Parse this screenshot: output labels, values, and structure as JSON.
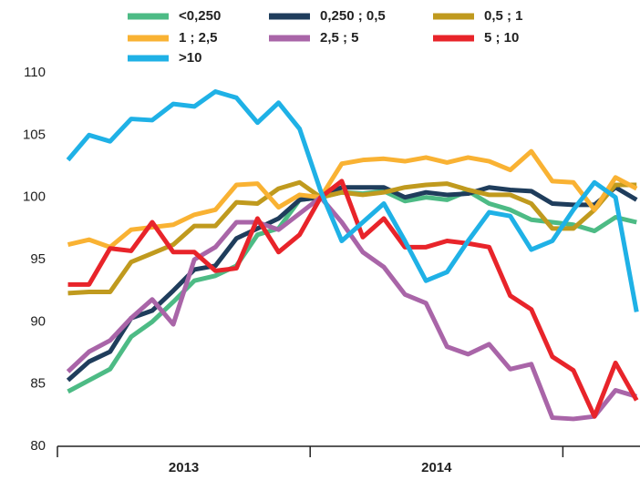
{
  "chart_data": {
    "type": "line",
    "categories": [
      null,
      null,
      null,
      null,
      null,
      null,
      null,
      null,
      null,
      null,
      null,
      null,
      null,
      null,
      null,
      null,
      null,
      null,
      null,
      null,
      null,
      null,
      null,
      null,
      null,
      null,
      null,
      null
    ],
    "x_group_labels": [
      "2013",
      "2014"
    ],
    "ylim": [
      80,
      110
    ],
    "yticks": [
      80,
      85,
      90,
      95,
      100,
      105,
      110
    ],
    "grid": false,
    "legend": "top",
    "series": [
      {
        "name": "<0,250",
        "color": "#4dbb85",
        "values": [
          84.4,
          85.3,
          86.2,
          88.8,
          90,
          91.6,
          93.3,
          93.7,
          94.5,
          97,
          97.5,
          99.8,
          100,
          100.4,
          100.3,
          100.5,
          99.7,
          100,
          99.8,
          100.5,
          99.5,
          99,
          98.2,
          98,
          97.8,
          97.3,
          98.4,
          98
        ]
      },
      {
        "name": "0,250 ; 0,5",
        "color": "#1f3d5c",
        "values": [
          85.3,
          86.8,
          87.6,
          90.3,
          90.9,
          92.5,
          94.2,
          94.5,
          96.7,
          97.5,
          98.3,
          99.8,
          100,
          100.8,
          100.8,
          100.8,
          100,
          100.4,
          100.2,
          100.3,
          100.8,
          100.6,
          100.5,
          99.5,
          99.4,
          99.4,
          100.8,
          99.8
        ]
      },
      {
        "name": "0,5 ; 1",
        "color": "#c09a1e",
        "values": [
          92.3,
          92.4,
          92.4,
          94.8,
          95.5,
          96.2,
          97.7,
          97.7,
          99.6,
          99.5,
          100.7,
          101.2,
          100,
          100.4,
          100.2,
          100.4,
          100.8,
          101,
          101.1,
          100.6,
          100.2,
          100.2,
          99.5,
          97.5,
          97.5,
          99,
          101,
          101
        ]
      },
      {
        "name": "1 ; 2,5",
        "color": "#f9b233",
        "values": [
          96.2,
          96.6,
          96,
          97.4,
          97.6,
          97.8,
          98.6,
          99,
          101,
          101.1,
          99.2,
          100.2,
          100,
          102.7,
          103,
          103.1,
          102.9,
          103.2,
          102.8,
          103.2,
          102.9,
          102.2,
          103.7,
          101.3,
          101.2,
          99,
          101.6,
          100.7
        ]
      },
      {
        "name": "2,5 ; 5",
        "color": "#a965a8",
        "values": [
          86,
          87.6,
          88.5,
          90.3,
          91.8,
          89.8,
          95,
          96,
          98,
          98,
          97.4,
          98.7,
          100,
          98,
          95.6,
          94.4,
          92.2,
          91.5,
          88,
          87.4,
          88.2,
          86.2,
          86.6,
          82.3,
          82.2,
          82.4,
          84.5,
          84
        ]
      },
      {
        "name": "5 ; 10",
        "color": "#e8242a",
        "values": [
          93,
          93,
          95.9,
          95.7,
          98,
          95.6,
          95.6,
          94.1,
          94.3,
          98.3,
          95.6,
          97,
          100,
          101.3,
          96.8,
          98.3,
          96,
          96,
          96.5,
          96.3,
          96,
          92.1,
          91,
          87.2,
          86.1,
          82.4,
          86.7,
          83.7
        ]
      },
      {
        "name": ">10",
        "color": "#1fb1e6",
        "values": [
          103,
          105,
          104.5,
          106.3,
          106.2,
          107.5,
          107.3,
          108.5,
          108,
          106,
          107.6,
          105.5,
          100.5,
          96.5,
          98,
          99.5,
          96.5,
          93.3,
          94,
          96.5,
          98.8,
          98.5,
          95.8,
          96.5,
          99,
          101.2,
          100,
          90.8
        ]
      }
    ]
  }
}
